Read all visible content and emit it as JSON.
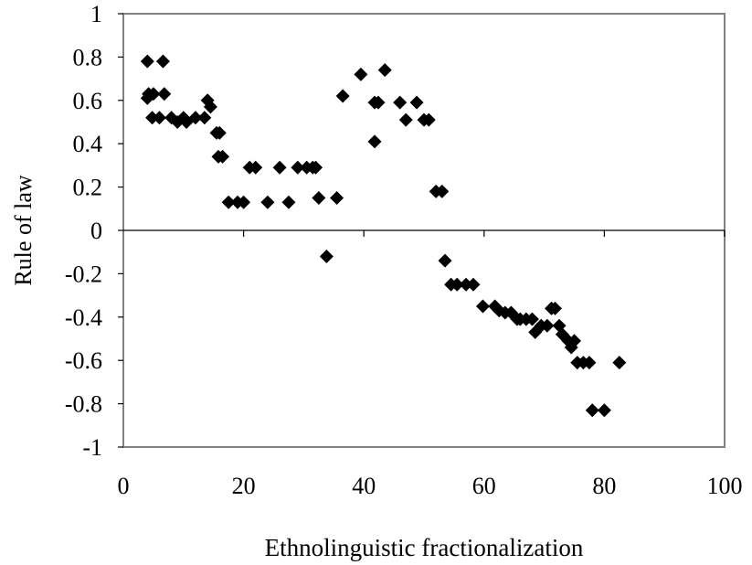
{
  "chart_data": {
    "type": "scatter",
    "title": "",
    "xlabel": "Ethnolinguistic fractionalization",
    "ylabel": "Rule of law",
    "xlim": [
      0,
      100
    ],
    "ylim": [
      -1,
      1
    ],
    "xticks": [
      "0",
      "20",
      "40",
      "60",
      "80",
      "100"
    ],
    "yticks": [
      "1",
      "0.8",
      "0.6",
      "0.4",
      "0.2",
      "0",
      "-0.2",
      "-0.4",
      "-0.6",
      "-0.8",
      "-1"
    ],
    "grid": false,
    "legend": "none",
    "colors": {
      "marker": "#000000",
      "axes": "#808080",
      "text": "#000000"
    },
    "marker": "diamond",
    "points": [
      [
        4,
        0.78
      ],
      [
        4,
        0.61
      ],
      [
        4.2,
        0.63
      ],
      [
        5,
        0.63
      ],
      [
        6.6,
        0.78
      ],
      [
        6.8,
        0.63
      ],
      [
        4.8,
        0.52
      ],
      [
        6,
        0.52
      ],
      [
        8,
        0.52
      ],
      [
        9,
        0.5
      ],
      [
        10,
        0.52
      ],
      [
        10.5,
        0.5
      ],
      [
        12,
        0.52
      ],
      [
        13.5,
        0.52
      ],
      [
        14,
        0.6
      ],
      [
        14.5,
        0.57
      ],
      [
        15.5,
        0.45
      ],
      [
        16,
        0.45
      ],
      [
        15.8,
        0.34
      ],
      [
        16.5,
        0.34
      ],
      [
        17.5,
        0.13
      ],
      [
        19,
        0.13
      ],
      [
        20,
        0.13
      ],
      [
        21,
        0.29
      ],
      [
        22,
        0.29
      ],
      [
        24,
        0.13
      ],
      [
        26,
        0.29
      ],
      [
        27.5,
        0.13
      ],
      [
        29,
        0.29
      ],
      [
        30.5,
        0.29
      ],
      [
        31.5,
        0.29
      ],
      [
        32,
        0.29
      ],
      [
        32.5,
        0.15
      ],
      [
        35.5,
        0.15
      ],
      [
        33.8,
        -0.12
      ],
      [
        36.5,
        0.62
      ],
      [
        39.5,
        0.72
      ],
      [
        41.8,
        0.59
      ],
      [
        42.4,
        0.59
      ],
      [
        41.8,
        0.41
      ],
      [
        43.5,
        0.74
      ],
      [
        46,
        0.59
      ],
      [
        47,
        0.51
      ],
      [
        48.8,
        0.59
      ],
      [
        50,
        0.51
      ],
      [
        50.8,
        0.51
      ],
      [
        52,
        0.18
      ],
      [
        53,
        0.18
      ],
      [
        53.5,
        -0.14
      ],
      [
        54.5,
        -0.25
      ],
      [
        55.5,
        -0.25
      ],
      [
        57,
        -0.25
      ],
      [
        58.2,
        -0.25
      ],
      [
        59.8,
        -0.35
      ],
      [
        61.8,
        -0.35
      ],
      [
        62.5,
        -0.37
      ],
      [
        63.5,
        -0.38
      ],
      [
        64.5,
        -0.38
      ],
      [
        65.5,
        -0.41
      ],
      [
        66,
        -0.41
      ],
      [
        67,
        -0.41
      ],
      [
        68,
        -0.41
      ],
      [
        68.5,
        -0.47
      ],
      [
        69.5,
        -0.44
      ],
      [
        70.5,
        -0.44
      ],
      [
        71.2,
        -0.36
      ],
      [
        71.8,
        -0.36
      ],
      [
        72.5,
        -0.44
      ],
      [
        73,
        -0.48
      ],
      [
        74,
        -0.51
      ],
      [
        74.5,
        -0.54
      ],
      [
        75,
        -0.51
      ],
      [
        75.5,
        -0.61
      ],
      [
        76.5,
        -0.61
      ],
      [
        77.5,
        -0.61
      ],
      [
        78,
        -0.83
      ],
      [
        80,
        -0.83
      ],
      [
        82.5,
        -0.61
      ]
    ]
  }
}
